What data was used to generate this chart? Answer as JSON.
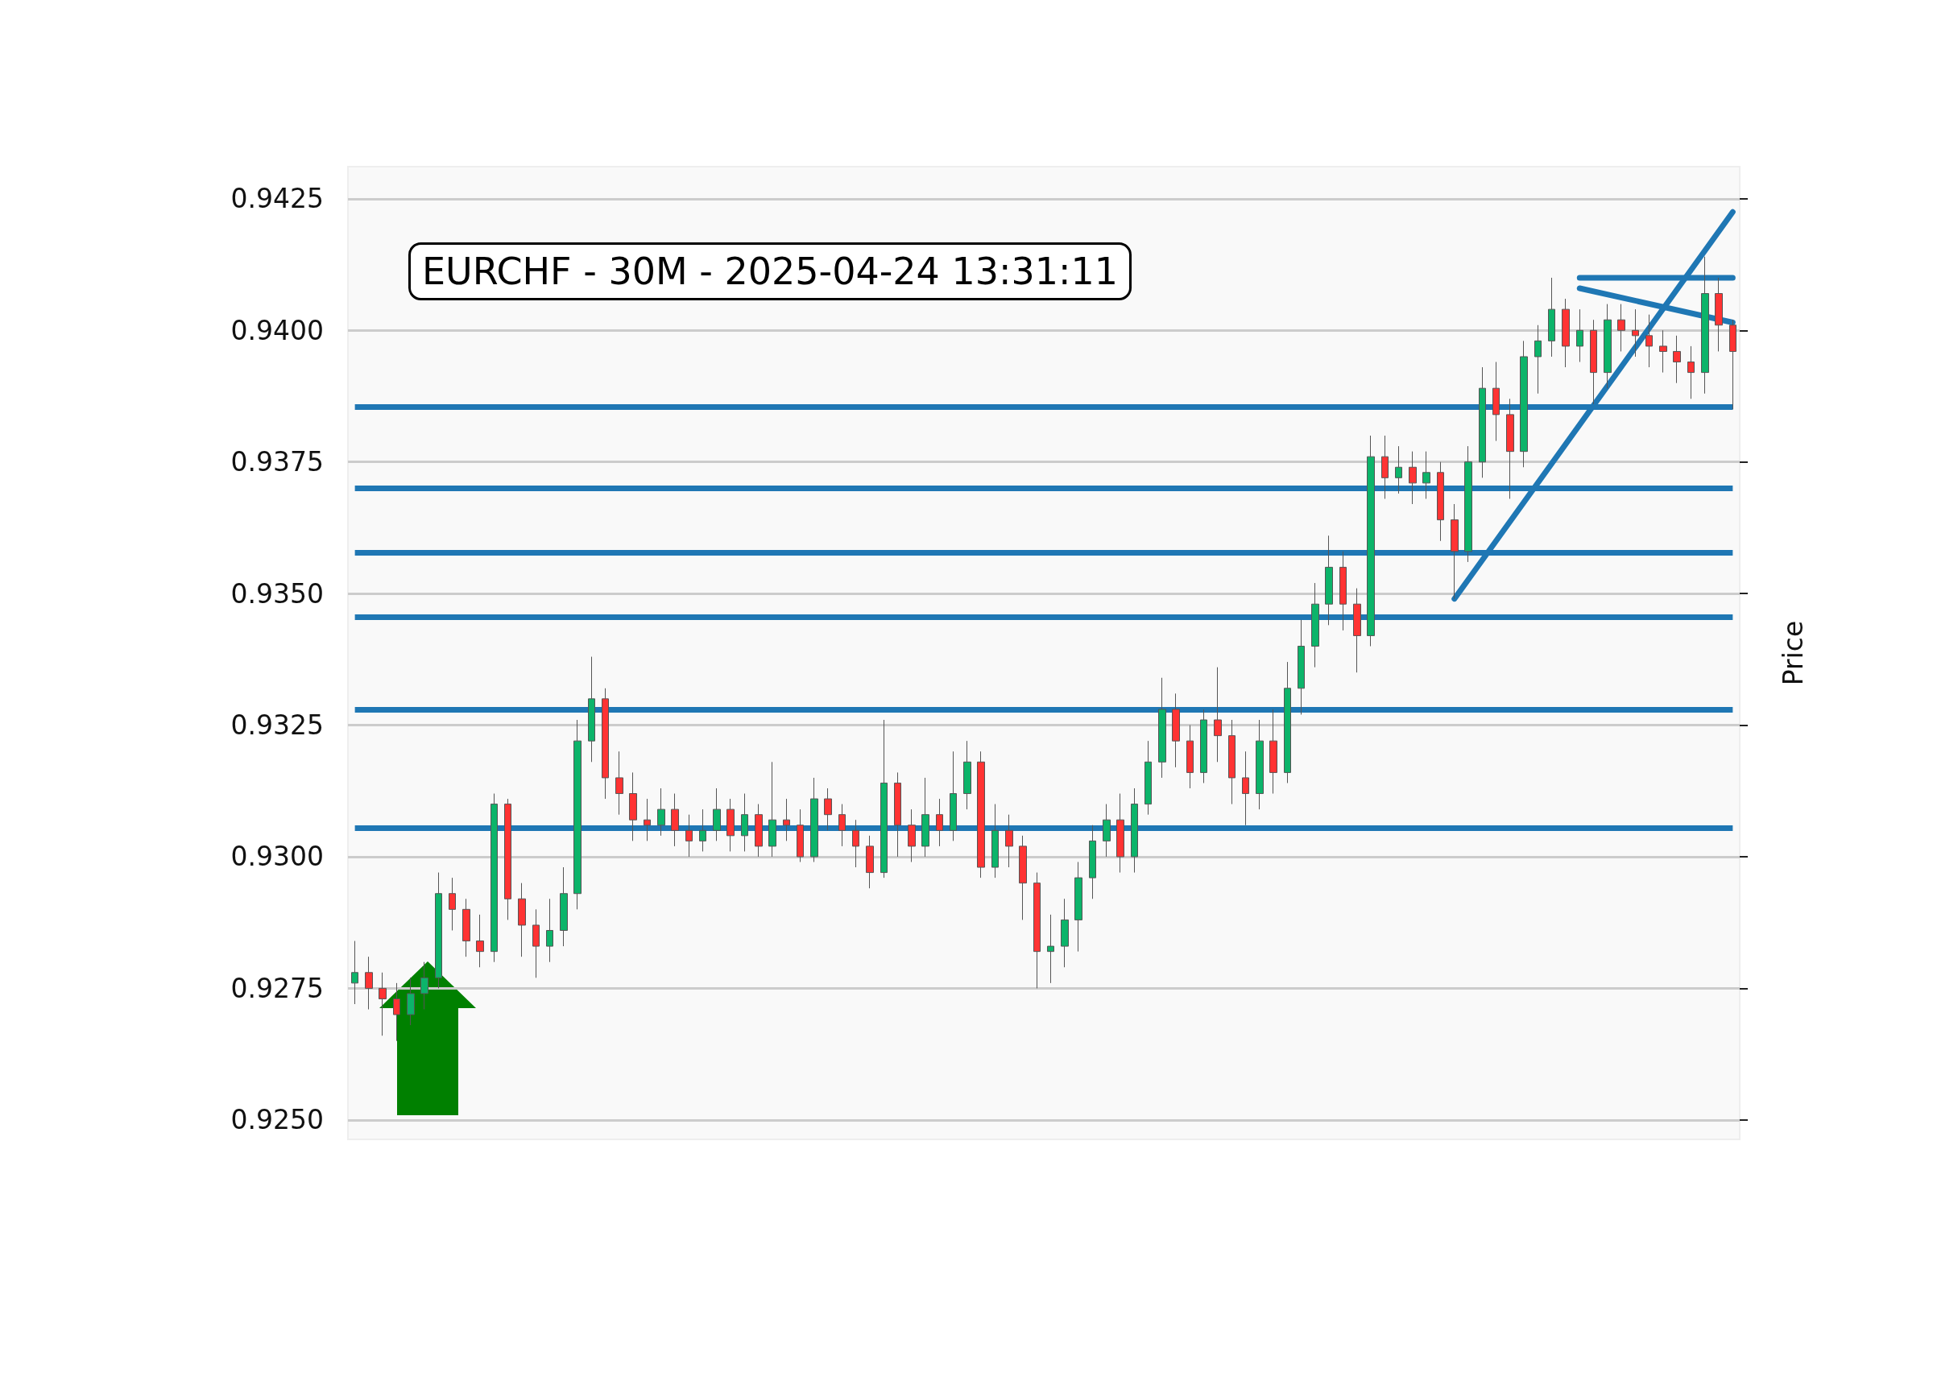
{
  "chart_data": {
    "type": "candlestick",
    "title": "EURCHF - 30M - 2025-04-24 13:31:11",
    "ylabel": "Price",
    "categories": [
      null,
      null,
      null,
      null,
      null,
      null,
      null,
      null,
      null,
      null,
      null,
      null,
      null,
      null,
      null,
      null,
      null,
      null,
      null,
      null,
      null,
      null,
      null,
      null,
      null,
      null,
      null,
      null,
      null,
      null,
      null,
      null,
      null,
      null,
      null,
      null,
      null,
      null,
      null,
      null,
      null,
      null,
      null,
      null,
      null,
      null,
      null,
      null,
      null,
      null,
      null,
      null,
      null,
      null,
      null,
      null,
      null,
      null,
      null,
      null,
      null,
      null,
      null,
      null,
      null,
      null,
      null,
      null,
      null,
      null,
      null,
      null,
      null,
      null,
      null,
      null,
      null,
      null,
      null,
      null,
      null,
      null,
      null,
      null,
      null,
      null,
      null,
      null,
      null,
      null,
      null,
      null,
      null,
      null,
      null,
      null,
      null,
      null,
      null,
      null
    ],
    "ohlc": [
      [
        0.9276,
        0.9284,
        0.9272,
        0.9278
      ],
      [
        0.9278,
        0.9281,
        0.9271,
        0.9275
      ],
      [
        0.9275,
        0.9278,
        0.9266,
        0.9273
      ],
      [
        0.9273,
        0.9276,
        0.9265,
        0.927
      ],
      [
        0.927,
        0.9277,
        0.9268,
        0.9274
      ],
      [
        0.9274,
        0.928,
        0.9271,
        0.9277
      ],
      [
        0.9277,
        0.9297,
        0.9275,
        0.9293
      ],
      [
        0.9293,
        0.9296,
        0.9286,
        0.929
      ],
      [
        0.929,
        0.9292,
        0.9281,
        0.9284
      ],
      [
        0.9284,
        0.9289,
        0.9279,
        0.9282
      ],
      [
        0.9282,
        0.9312,
        0.928,
        0.931
      ],
      [
        0.931,
        0.9311,
        0.9288,
        0.9292
      ],
      [
        0.9292,
        0.9295,
        0.9281,
        0.9287
      ],
      [
        0.9287,
        0.929,
        0.9277,
        0.9283
      ],
      [
        0.9283,
        0.9292,
        0.928,
        0.9286
      ],
      [
        0.9286,
        0.9298,
        0.9283,
        0.9293
      ],
      [
        0.9293,
        0.9326,
        0.929,
        0.9322
      ],
      [
        0.9322,
        0.9338,
        0.9318,
        0.933
      ],
      [
        0.933,
        0.9332,
        0.9311,
        0.9315
      ],
      [
        0.9315,
        0.932,
        0.9308,
        0.9312
      ],
      [
        0.9312,
        0.9316,
        0.9303,
        0.9307
      ],
      [
        0.9307,
        0.9311,
        0.9303,
        0.9306
      ],
      [
        0.9306,
        0.9313,
        0.9304,
        0.9309
      ],
      [
        0.9309,
        0.9312,
        0.9302,
        0.9305
      ],
      [
        0.9305,
        0.9308,
        0.93,
        0.9303
      ],
      [
        0.9303,
        0.9309,
        0.9301,
        0.9305
      ],
      [
        0.9305,
        0.9313,
        0.9303,
        0.9309
      ],
      [
        0.9309,
        0.9311,
        0.9301,
        0.9304
      ],
      [
        0.9304,
        0.9312,
        0.9301,
        0.9308
      ],
      [
        0.9308,
        0.931,
        0.93,
        0.9302
      ],
      [
        0.9302,
        0.9318,
        0.93,
        0.9307
      ],
      [
        0.9307,
        0.9311,
        0.9303,
        0.9306
      ],
      [
        0.9306,
        0.9309,
        0.9299,
        0.93
      ],
      [
        0.93,
        0.9315,
        0.9299,
        0.9311
      ],
      [
        0.9311,
        0.9313,
        0.9305,
        0.9308
      ],
      [
        0.9308,
        0.931,
        0.9302,
        0.9305
      ],
      [
        0.9305,
        0.9307,
        0.9298,
        0.9302
      ],
      [
        0.9302,
        0.9304,
        0.9294,
        0.9297
      ],
      [
        0.9297,
        0.9326,
        0.9296,
        0.9314
      ],
      [
        0.9314,
        0.9316,
        0.93,
        0.9306
      ],
      [
        0.9306,
        0.9309,
        0.9299,
        0.9302
      ],
      [
        0.9302,
        0.9315,
        0.93,
        0.9308
      ],
      [
        0.9308,
        0.9311,
        0.9302,
        0.9305
      ],
      [
        0.9305,
        0.932,
        0.9303,
        0.9312
      ],
      [
        0.9312,
        0.9322,
        0.9309,
        0.9318
      ],
      [
        0.9318,
        0.932,
        0.9296,
        0.9298
      ],
      [
        0.9298,
        0.931,
        0.9296,
        0.9305
      ],
      [
        0.9305,
        0.9308,
        0.9298,
        0.9302
      ],
      [
        0.9302,
        0.9304,
        0.9288,
        0.9295
      ],
      [
        0.9295,
        0.9297,
        0.9275,
        0.9282
      ],
      [
        0.9282,
        0.9289,
        0.9276,
        0.9283
      ],
      [
        0.9283,
        0.9292,
        0.9279,
        0.9288
      ],
      [
        0.9288,
        0.9299,
        0.9282,
        0.9296
      ],
      [
        0.9296,
        0.9306,
        0.9292,
        0.9303
      ],
      [
        0.9303,
        0.931,
        0.93,
        0.9307
      ],
      [
        0.9307,
        0.9312,
        0.9297,
        0.93
      ],
      [
        0.93,
        0.9313,
        0.9297,
        0.931
      ],
      [
        0.931,
        0.9322,
        0.9308,
        0.9318
      ],
      [
        0.9318,
        0.9334,
        0.9315,
        0.9328
      ],
      [
        0.9328,
        0.9331,
        0.9317,
        0.9322
      ],
      [
        0.9322,
        0.9325,
        0.9313,
        0.9316
      ],
      [
        0.9316,
        0.9328,
        0.9314,
        0.9326
      ],
      [
        0.9326,
        0.9336,
        0.9318,
        0.9323
      ],
      [
        0.9323,
        0.9326,
        0.931,
        0.9315
      ],
      [
        0.9315,
        0.932,
        0.9306,
        0.9312
      ],
      [
        0.9312,
        0.9326,
        0.9309,
        0.9322
      ],
      [
        0.9322,
        0.9328,
        0.9312,
        0.9316
      ],
      [
        0.9316,
        0.9337,
        0.9314,
        0.9332
      ],
      [
        0.9332,
        0.9345,
        0.9327,
        0.934
      ],
      [
        0.934,
        0.9352,
        0.9336,
        0.9348
      ],
      [
        0.9348,
        0.9361,
        0.9344,
        0.9355
      ],
      [
        0.9355,
        0.9358,
        0.9343,
        0.9348
      ],
      [
        0.9348,
        0.9351,
        0.9335,
        0.9342
      ],
      [
        0.9342,
        0.938,
        0.934,
        0.9376
      ],
      [
        0.9376,
        0.938,
        0.9368,
        0.9372
      ],
      [
        0.9372,
        0.9378,
        0.9369,
        0.9374
      ],
      [
        0.9374,
        0.9377,
        0.9367,
        0.9371
      ],
      [
        0.9371,
        0.9377,
        0.9368,
        0.9373
      ],
      [
        0.9373,
        0.9375,
        0.936,
        0.9364
      ],
      [
        0.9364,
        0.9367,
        0.9349,
        0.9358
      ],
      [
        0.9358,
        0.9378,
        0.9356,
        0.9375
      ],
      [
        0.9375,
        0.9393,
        0.9372,
        0.9389
      ],
      [
        0.9389,
        0.9394,
        0.9379,
        0.9384
      ],
      [
        0.9384,
        0.9387,
        0.9368,
        0.9377
      ],
      [
        0.9377,
        0.9398,
        0.9374,
        0.9395
      ],
      [
        0.9395,
        0.9401,
        0.9388,
        0.9398
      ],
      [
        0.9398,
        0.941,
        0.9395,
        0.9404
      ],
      [
        0.9404,
        0.9406,
        0.9393,
        0.9397
      ],
      [
        0.9397,
        0.9404,
        0.9394,
        0.94
      ],
      [
        0.94,
        0.9402,
        0.9386,
        0.9392
      ],
      [
        0.9392,
        0.9405,
        0.9389,
        0.9402
      ],
      [
        0.9402,
        0.9405,
        0.9396,
        0.94
      ],
      [
        0.94,
        0.9404,
        0.9395,
        0.9399
      ],
      [
        0.9399,
        0.9403,
        0.9393,
        0.9397
      ],
      [
        0.9397,
        0.94,
        0.9392,
        0.9396
      ],
      [
        0.9396,
        0.9399,
        0.939,
        0.9394
      ],
      [
        0.9394,
        0.9397,
        0.9387,
        0.9392
      ],
      [
        0.9392,
        0.9414,
        0.9388,
        0.9407
      ],
      [
        0.9407,
        0.941,
        0.9396,
        0.9401
      ],
      [
        0.9401,
        0.9402,
        0.9385,
        0.9396
      ]
    ],
    "series": [
      {
        "type": "line",
        "color": "#1f77b4",
        "values": [
          null,
          null,
          null,
          null,
          null,
          null,
          null,
          null,
          null,
          null,
          null,
          null,
          null,
          null,
          null,
          null,
          null,
          null,
          null,
          null,
          null,
          null,
          null,
          null,
          null,
          null,
          null,
          null,
          null,
          null,
          null,
          null,
          null,
          null,
          null,
          null,
          null,
          null,
          null,
          null,
          null,
          null,
          null,
          null,
          null,
          null,
          null,
          null,
          null,
          null,
          null,
          null,
          null,
          null,
          null,
          null,
          null,
          null,
          null,
          null,
          null,
          null,
          null,
          null,
          null,
          null,
          null,
          null,
          null,
          null,
          null,
          null,
          null,
          null,
          null,
          null,
          null,
          null,
          null,
          0.9349,
          null,
          null,
          null,
          null,
          null,
          null,
          null,
          null,
          null,
          null,
          null,
          null,
          null,
          null,
          null,
          null,
          null,
          null,
          null,
          0.94225
        ]
      },
      {
        "type": "line",
        "color": "#1f77b4",
        "values": [
          null,
          null,
          null,
          null,
          null,
          null,
          null,
          null,
          null,
          null,
          null,
          null,
          null,
          null,
          null,
          null,
          null,
          null,
          null,
          null,
          null,
          null,
          null,
          null,
          null,
          null,
          null,
          null,
          null,
          null,
          null,
          null,
          null,
          null,
          null,
          null,
          null,
          null,
          null,
          null,
          null,
          null,
          null,
          null,
          null,
          null,
          null,
          null,
          null,
          null,
          null,
          null,
          null,
          null,
          null,
          null,
          null,
          null,
          null,
          null,
          null,
          null,
          null,
          null,
          null,
          null,
          null,
          null,
          null,
          null,
          null,
          null,
          null,
          null,
          null,
          null,
          null,
          null,
          null,
          null,
          null,
          null,
          null,
          null,
          null,
          null,
          null,
          null,
          0.9408,
          null,
          null,
          null,
          null,
          null,
          null,
          null,
          null,
          null,
          null,
          0.94015
        ]
      },
      {
        "type": "line",
        "color": "#1f77b4",
        "values": [
          null,
          null,
          null,
          null,
          null,
          null,
          null,
          null,
          null,
          null,
          null,
          null,
          null,
          null,
          null,
          null,
          null,
          null,
          null,
          null,
          null,
          null,
          null,
          null,
          null,
          null,
          null,
          null,
          null,
          null,
          null,
          null,
          null,
          null,
          null,
          null,
          null,
          null,
          null,
          null,
          null,
          null,
          null,
          null,
          null,
          null,
          null,
          null,
          null,
          null,
          null,
          null,
          null,
          null,
          null,
          null,
          null,
          null,
          null,
          null,
          null,
          null,
          null,
          null,
          null,
          null,
          null,
          null,
          null,
          null,
          null,
          null,
          null,
          null,
          null,
          null,
          null,
          null,
          null,
          null,
          null,
          null,
          null,
          null,
          null,
          null,
          null,
          null,
          0.941,
          null,
          null,
          null,
          null,
          null,
          null,
          null,
          null,
          null,
          null,
          0.941
        ]
      }
    ],
    "ref_lines": [
      {
        "axis": "y",
        "value": 0.93855,
        "color": "#1f77b4"
      },
      {
        "axis": "y",
        "value": 0.937,
        "color": "#1f77b4"
      },
      {
        "axis": "y",
        "value": 0.93578,
        "color": "#1f77b4"
      },
      {
        "axis": "y",
        "value": 0.93455,
        "color": "#1f77b4"
      },
      {
        "axis": "y",
        "value": 0.9328,
        "color": "#1f77b4"
      },
      {
        "axis": "y",
        "value": 0.93055,
        "color": "#1f77b4"
      }
    ],
    "ylim": [
      0.92463,
      0.94311
    ],
    "yticks": [
      {
        "value": 0.925,
        "label": "0.9250"
      },
      0.9275,
      {
        "value": 0.93,
        "label": "0.9300"
      },
      0.9325,
      {
        "value": 0.935,
        "label": "0.9350"
      },
      0.9375,
      {
        "value": 0.94,
        "label": "0.9400"
      },
      0.9425
    ],
    "grid": "y",
    "tick_labels": "y"
  }
}
